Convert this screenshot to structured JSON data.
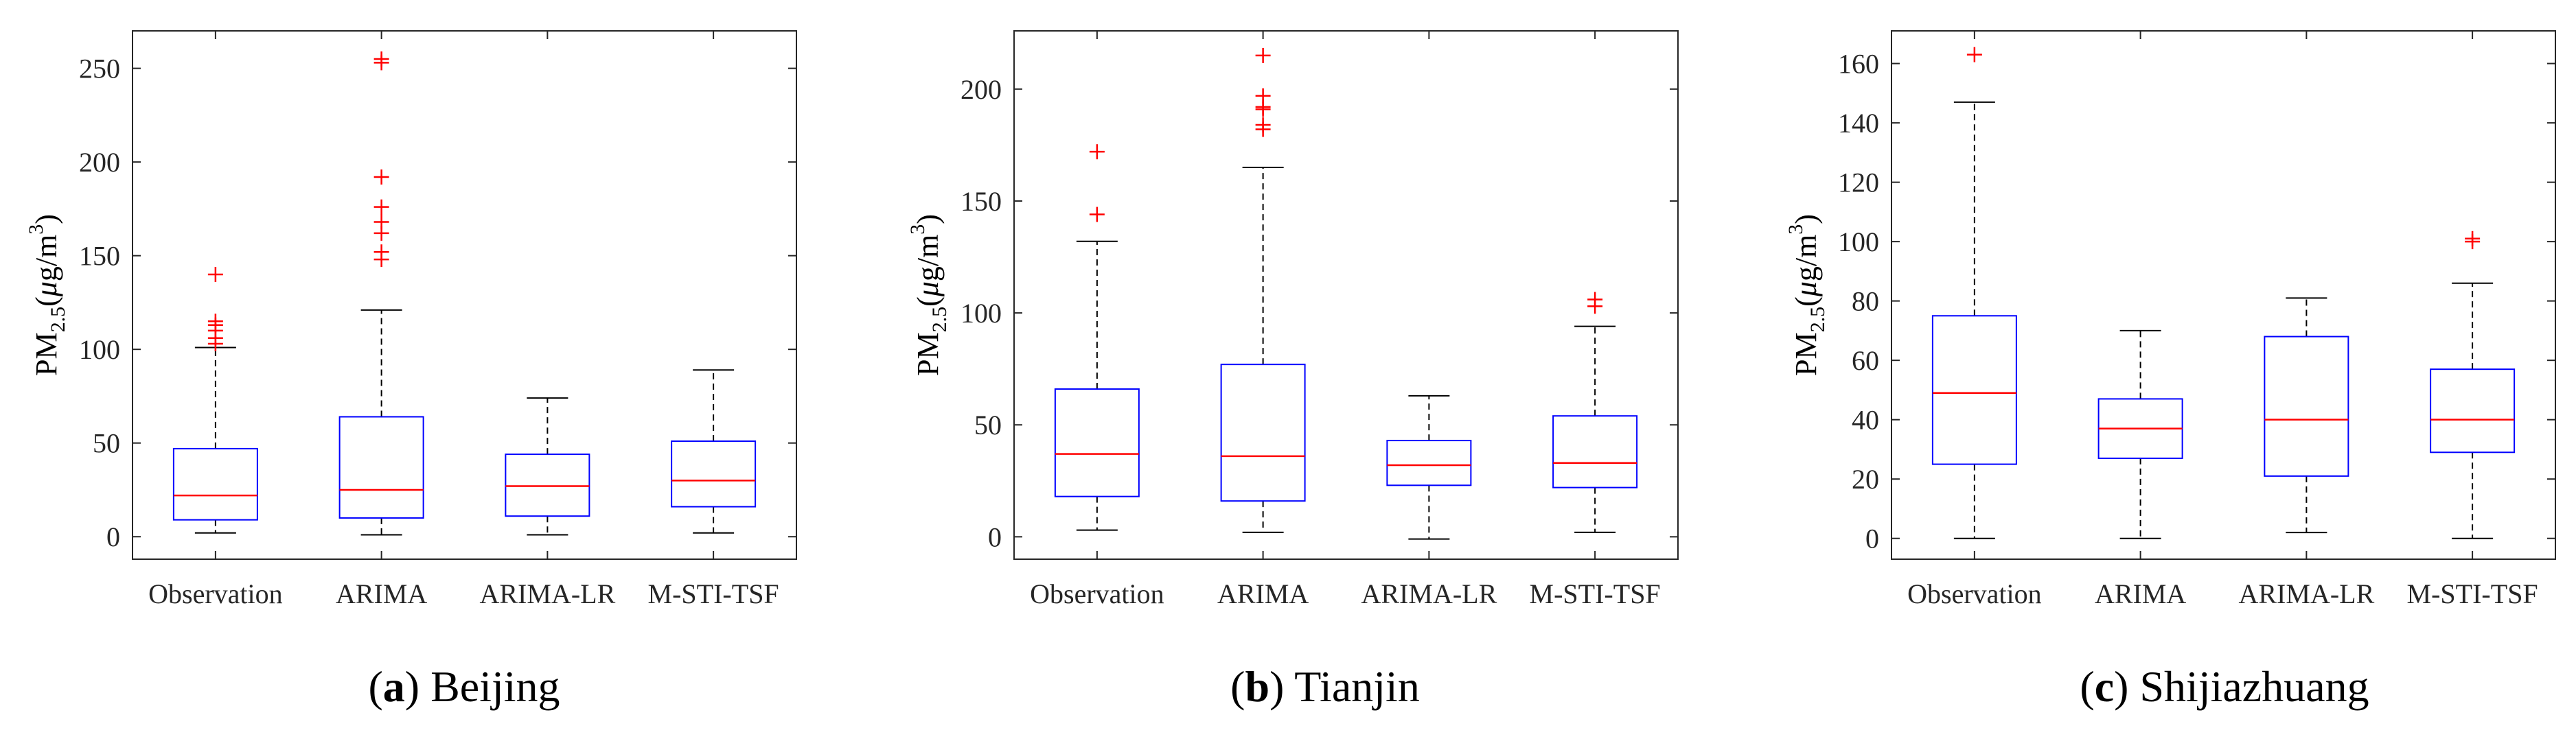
{
  "chart_data": [
    {
      "type": "boxplot",
      "caption": {
        "letter": "a",
        "text": "Beijing"
      },
      "ylabel": {
        "main": "PM",
        "sub": "2.5",
        "unit_pre": "(",
        "unit_mu": "μ",
        "unit_g": "g/m",
        "unit_sup": "3",
        "unit_post": ")"
      },
      "ylim": [
        -12,
        270
      ],
      "yticks": [
        0,
        50,
        100,
        150,
        200,
        250
      ],
      "categories": [
        "Observation",
        "ARIMA",
        "ARIMA-LR",
        "M-STI-TSF"
      ],
      "boxes": [
        {
          "category": "Observation",
          "whisker_low": 2,
          "q1": 9,
          "median": 22,
          "q3": 47,
          "whisker_high": 101,
          "outliers": [
            103,
            106,
            110,
            113,
            115,
            140
          ]
        },
        {
          "category": "ARIMA",
          "whisker_low": 1,
          "q1": 10,
          "median": 25,
          "q3": 64,
          "whisker_high": 121,
          "outliers": [
            148,
            152,
            162,
            168,
            176,
            192,
            253,
            255
          ]
        },
        {
          "category": "ARIMA-LR",
          "whisker_low": 1,
          "q1": 11,
          "median": 27,
          "q3": 44,
          "whisker_high": 74,
          "outliers": []
        },
        {
          "category": "M-STI-TSF",
          "whisker_low": 2,
          "q1": 16,
          "median": 30,
          "q3": 51,
          "whisker_high": 89,
          "outliers": []
        }
      ]
    },
    {
      "type": "boxplot",
      "caption": {
        "letter": "b",
        "text": "Tianjin"
      },
      "ylabel": {
        "main": "PM",
        "sub": "2.5",
        "unit_pre": "(",
        "unit_mu": "μ",
        "unit_g": "g/m",
        "unit_sup": "3",
        "unit_post": ")"
      },
      "ylim": [
        -10,
        226
      ],
      "yticks": [
        0,
        50,
        100,
        150,
        200
      ],
      "categories": [
        "Observation",
        "ARIMA",
        "ARIMA-LR",
        "M-STI-TSF"
      ],
      "boxes": [
        {
          "category": "Observation",
          "whisker_low": 3,
          "q1": 18,
          "median": 37,
          "q3": 66,
          "whisker_high": 132,
          "outliers": [
            144,
            172
          ]
        },
        {
          "category": "ARIMA",
          "whisker_low": 2,
          "q1": 16,
          "median": 36,
          "q3": 77,
          "whisker_high": 165,
          "outliers": [
            182,
            184,
            191,
            192,
            197,
            215
          ]
        },
        {
          "category": "ARIMA-LR",
          "whisker_low": -1,
          "q1": 23,
          "median": 32,
          "q3": 43,
          "whisker_high": 63,
          "outliers": []
        },
        {
          "category": "M-STI-TSF",
          "whisker_low": 2,
          "q1": 22,
          "median": 33,
          "q3": 54,
          "whisker_high": 94,
          "outliers": [
            103,
            106
          ]
        }
      ]
    },
    {
      "type": "boxplot",
      "caption": {
        "letter": "c",
        "text": "Shijiazhuang"
      },
      "ylabel": {
        "main": "PM",
        "sub": "2.5",
        "unit_pre": "(",
        "unit_mu": "μ",
        "unit_g": "g/m",
        "unit_sup": "3",
        "unit_post": ")"
      },
      "ylim": [
        -7,
        171
      ],
      "yticks": [
        0,
        20,
        40,
        60,
        80,
        100,
        120,
        140,
        160
      ],
      "categories": [
        "Observation",
        "ARIMA",
        "ARIMA-LR",
        "M-STI-TSF"
      ],
      "boxes": [
        {
          "category": "Observation",
          "whisker_low": 0,
          "q1": 25,
          "median": 49,
          "q3": 75,
          "whisker_high": 147,
          "outliers": [
            163
          ]
        },
        {
          "category": "ARIMA",
          "whisker_low": 0,
          "q1": 27,
          "median": 37,
          "q3": 47,
          "whisker_high": 70,
          "outliers": []
        },
        {
          "category": "ARIMA-LR",
          "whisker_low": 2,
          "q1": 21,
          "median": 40,
          "q3": 68,
          "whisker_high": 81,
          "outliers": []
        },
        {
          "category": "M-STI-TSF",
          "whisker_low": 0,
          "q1": 29,
          "median": 40,
          "q3": 57,
          "whisker_high": 86,
          "outliers": [
            100,
            101
          ]
        }
      ]
    }
  ],
  "colors": {
    "box": "#0000ff",
    "median": "#ff0000",
    "outlier": "#ff0000",
    "whisker": "#000000",
    "axis": "#262626"
  }
}
